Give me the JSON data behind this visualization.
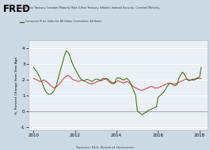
{
  "legend_line1": "5-Year Treasury Constant Maturity Rate-5-Year Treasury Inflation-Indexed Security, Constant Maturity",
  "legend_line2": "Consumer Price Index for All Urban Consumers: All Items",
  "ylabel": "%, Percent Change from Year Ago",
  "source": "Sources: BLS, Board of Governors",
  "ylim": [
    -1.2,
    4.5
  ],
  "yticks": [
    -1,
    0,
    1,
    2,
    3,
    4
  ],
  "bg_color": "#cdd9e5",
  "plot_bg": "#eaf0f6",
  "red_color": "#cc3333",
  "green_color": "#336600",
  "zero_line_color": "#aaaaaa",
  "xtick_years": [
    2010,
    2012,
    2014,
    2016,
    2018
  ],
  "red_x": [
    2010.0,
    2010.08,
    2010.17,
    2010.25,
    2010.33,
    2010.42,
    2010.5,
    2010.58,
    2010.67,
    2010.75,
    2010.83,
    2010.92,
    2011.0,
    2011.08,
    2011.17,
    2011.25,
    2011.33,
    2011.42,
    2011.5,
    2011.58,
    2011.67,
    2011.75,
    2011.83,
    2011.92,
    2012.0,
    2012.08,
    2012.17,
    2012.25,
    2012.33,
    2012.42,
    2012.5,
    2012.58,
    2012.67,
    2012.75,
    2012.83,
    2012.92,
    2013.0,
    2013.08,
    2013.17,
    2013.25,
    2013.33,
    2013.42,
    2013.5,
    2013.58,
    2013.67,
    2013.75,
    2013.83,
    2013.92,
    2014.0,
    2014.08,
    2014.17,
    2014.25,
    2014.33,
    2014.42,
    2014.5,
    2014.58,
    2014.67,
    2014.75,
    2014.83,
    2014.92,
    2015.0,
    2015.08,
    2015.17,
    2015.25,
    2015.33,
    2015.42,
    2015.5,
    2015.58,
    2015.67,
    2015.75,
    2015.83,
    2015.92,
    2016.0,
    2016.08,
    2016.17,
    2016.25,
    2016.33,
    2016.42,
    2016.5,
    2016.58,
    2016.67,
    2016.75,
    2016.83,
    2016.92,
    2017.0,
    2017.08,
    2017.17,
    2017.25,
    2017.33,
    2017.42,
    2017.5,
    2017.58,
    2017.67,
    2017.75,
    2017.83,
    2017.92,
    2018.0,
    2018.08
  ],
  "red_y": [
    2.1,
    2.05,
    2.0,
    1.95,
    1.9,
    1.95,
    2.0,
    1.95,
    1.85,
    1.75,
    1.65,
    1.55,
    1.5,
    1.55,
    1.65,
    1.75,
    1.9,
    2.05,
    2.15,
    2.25,
    2.3,
    2.2,
    2.1,
    2.0,
    2.0,
    1.95,
    1.9,
    1.95,
    2.0,
    1.95,
    1.9,
    1.85,
    1.8,
    1.75,
    1.75,
    1.8,
    1.85,
    1.9,
    1.95,
    2.0,
    2.1,
    2.1,
    2.05,
    1.95,
    1.85,
    1.8,
    1.75,
    1.8,
    1.9,
    1.95,
    1.9,
    1.85,
    1.8,
    1.85,
    1.9,
    1.85,
    1.75,
    1.65,
    1.55,
    1.5,
    1.45,
    1.4,
    1.35,
    1.35,
    1.4,
    1.45,
    1.5,
    1.55,
    1.6,
    1.55,
    1.5,
    1.5,
    1.5,
    1.55,
    1.6,
    1.65,
    1.7,
    1.75,
    1.8,
    1.8,
    1.75,
    1.75,
    1.75,
    1.8,
    1.85,
    1.9,
    1.95,
    2.0,
    2.05,
    2.05,
    2.0,
    2.0,
    2.0,
    2.0,
    2.05,
    2.1,
    2.1,
    2.1
  ],
  "green_x": [
    2010.0,
    2010.08,
    2010.17,
    2010.25,
    2010.33,
    2010.42,
    2010.5,
    2010.58,
    2010.67,
    2010.75,
    2010.83,
    2010.92,
    2011.0,
    2011.08,
    2011.17,
    2011.25,
    2011.33,
    2011.42,
    2011.5,
    2011.58,
    2011.67,
    2011.75,
    2011.83,
    2011.92,
    2012.0,
    2012.08,
    2012.17,
    2012.25,
    2012.33,
    2012.42,
    2012.5,
    2012.58,
    2012.67,
    2012.75,
    2012.83,
    2012.92,
    2013.0,
    2013.08,
    2013.17,
    2013.25,
    2013.33,
    2013.42,
    2013.5,
    2013.58,
    2013.67,
    2013.75,
    2013.83,
    2013.92,
    2014.0,
    2014.08,
    2014.17,
    2014.25,
    2014.33,
    2014.42,
    2014.5,
    2014.58,
    2014.67,
    2014.75,
    2014.83,
    2014.92,
    2015.0,
    2015.08,
    2015.17,
    2015.25,
    2015.33,
    2015.42,
    2015.5,
    2015.58,
    2015.67,
    2015.75,
    2015.83,
    2015.92,
    2016.0,
    2016.08,
    2016.17,
    2016.25,
    2016.33,
    2016.42,
    2016.5,
    2016.58,
    2016.67,
    2016.75,
    2016.83,
    2016.92,
    2017.0,
    2017.08,
    2017.17,
    2017.25,
    2017.33,
    2017.42,
    2017.5,
    2017.58,
    2017.67,
    2017.75,
    2017.83,
    2017.92,
    2018.0,
    2018.08
  ],
  "green_y": [
    2.8,
    2.65,
    2.5,
    2.3,
    2.1,
    1.8,
    1.5,
    1.3,
    1.15,
    1.1,
    1.1,
    1.2,
    1.35,
    1.6,
    2.0,
    2.4,
    2.8,
    3.2,
    3.6,
    3.85,
    3.75,
    3.5,
    3.2,
    2.9,
    2.7,
    2.5,
    2.3,
    2.1,
    2.0,
    1.95,
    2.0,
    2.05,
    2.0,
    1.95,
    1.9,
    2.0,
    2.05,
    2.05,
    2.0,
    1.95,
    2.0,
    2.05,
    2.1,
    2.05,
    1.95,
    1.85,
    1.8,
    1.85,
    2.1,
    2.15,
    2.1,
    2.05,
    2.0,
    2.05,
    2.1,
    2.0,
    1.8,
    1.55,
    1.3,
    1.0,
    0.05,
    -0.05,
    -0.15,
    -0.2,
    -0.1,
    -0.05,
    0.05,
    0.1,
    0.15,
    0.2,
    0.25,
    0.3,
    0.9,
    1.0,
    1.1,
    1.2,
    1.35,
    1.55,
    1.7,
    1.8,
    1.75,
    1.65,
    1.65,
    1.7,
    2.1,
    2.3,
    2.5,
    2.4,
    2.2,
    2.0,
    1.95,
    2.0,
    2.05,
    2.05,
    2.1,
    2.15,
    2.2,
    2.8
  ]
}
